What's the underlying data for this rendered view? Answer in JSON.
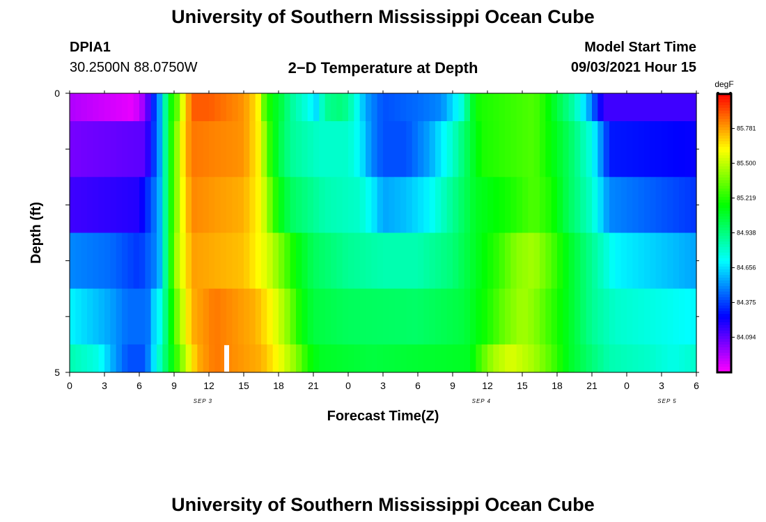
{
  "header": {
    "title": "University of Southern Mississippi Ocean Cube",
    "station": "DPIA1",
    "coords": "30.2500N  88.0750W",
    "plot_title": "2−D Temperature at Depth",
    "model_label": "Model Start Time",
    "model_time": "09/03/2021 Hour 15"
  },
  "footer": {
    "title": "University of Southern Mississippi Ocean Cube"
  },
  "chart_data": {
    "type": "heatmap",
    "title": "2−D Temperature at Depth",
    "xlabel": "Forecast Time(Z)",
    "ylabel": "Depth (ft)",
    "x_ticks": [
      "0",
      "3",
      "6",
      "9",
      "12",
      "15",
      "18",
      "21",
      "0",
      "3",
      "6",
      "9",
      "12",
      "15",
      "18",
      "21",
      "0",
      "3",
      "6"
    ],
    "x_range_hours": [
      0,
      54
    ],
    "day_labels": [
      {
        "label": "SEP 3",
        "hour": 11
      },
      {
        "label": "SEP 4",
        "hour": 35
      },
      {
        "label": "SEP 5",
        "hour": 51
      }
    ],
    "y_tick_labels": [
      "0",
      "5"
    ],
    "y_range": [
      0,
      5
    ],
    "depth_rows": 5,
    "colorbar": {
      "unit": "degF",
      "labels": [
        "85.781",
        "85.500",
        "85.219",
        "84.938",
        "84.656",
        "84.375",
        "84.094"
      ],
      "min": 83.81,
      "max": 86.06
    },
    "marker_hour": 13.5,
    "depth_bands": [
      {
        "depth": [
          0,
          0.5
        ],
        "temps": [
          [
            0,
            83.95
          ],
          [
            5.5,
            83.85
          ],
          [
            6.5,
            84.0
          ],
          [
            7.5,
            84.45
          ],
          [
            7.9,
            84.6
          ],
          [
            8.2,
            84.85
          ],
          [
            8.6,
            85.15
          ],
          [
            9.2,
            85.3
          ],
          [
            10,
            85.7
          ],
          [
            10.6,
            85.9
          ],
          [
            12,
            85.9
          ],
          [
            15,
            85.8
          ],
          [
            16.2,
            85.65
          ],
          [
            16.8,
            85.3
          ],
          [
            17.4,
            85.15
          ],
          [
            18.2,
            85.05
          ],
          [
            19,
            84.9
          ],
          [
            20.5,
            84.75
          ],
          [
            21.3,
            84.65
          ],
          [
            22,
            84.9
          ],
          [
            23.5,
            84.95
          ],
          [
            24.5,
            84.8
          ],
          [
            25.5,
            84.55
          ],
          [
            27,
            84.4
          ],
          [
            30,
            84.45
          ],
          [
            32,
            84.5
          ],
          [
            34,
            84.8
          ],
          [
            34.5,
            85.05
          ],
          [
            35.3,
            85.2
          ],
          [
            40,
            85.3
          ],
          [
            41,
            85.2
          ],
          [
            42,
            85.05
          ],
          [
            43.5,
            84.85
          ],
          [
            44.6,
            84.6
          ],
          [
            46,
            84.15
          ],
          [
            54,
            84.15
          ]
        ]
      },
      {
        "depth": [
          0.5,
          1.5
        ],
        "temps": [
          [
            0,
            84.05
          ],
          [
            6.5,
            84.1
          ],
          [
            7.5,
            84.45
          ],
          [
            7.9,
            84.6
          ],
          [
            8.2,
            84.85
          ],
          [
            8.6,
            85.15
          ],
          [
            9.2,
            85.4
          ],
          [
            10,
            85.75
          ],
          [
            10.6,
            85.85
          ],
          [
            15,
            85.8
          ],
          [
            16.5,
            85.6
          ],
          [
            17,
            85.3
          ],
          [
            18,
            85.05
          ],
          [
            19,
            84.9
          ],
          [
            21.5,
            84.8
          ],
          [
            24,
            84.8
          ],
          [
            25,
            84.7
          ],
          [
            26,
            84.5
          ],
          [
            27,
            84.4
          ],
          [
            29,
            84.4
          ],
          [
            31,
            84.55
          ],
          [
            33,
            84.8
          ],
          [
            34.5,
            85.05
          ],
          [
            35.5,
            85.2
          ],
          [
            40,
            85.3
          ],
          [
            41.5,
            85.15
          ],
          [
            43,
            85.0
          ],
          [
            45,
            84.75
          ],
          [
            46.5,
            84.3
          ],
          [
            54,
            84.25
          ]
        ]
      },
      {
        "depth": [
          1.5,
          2.5
        ],
        "temps": [
          [
            0,
            84.15
          ],
          [
            6,
            84.2
          ],
          [
            7.5,
            84.5
          ],
          [
            7.9,
            84.62
          ],
          [
            8.2,
            84.85
          ],
          [
            8.6,
            85.15
          ],
          [
            9.2,
            85.4
          ],
          [
            10,
            85.7
          ],
          [
            10.6,
            85.82
          ],
          [
            15,
            85.75
          ],
          [
            16.5,
            85.6
          ],
          [
            17.3,
            85.35
          ],
          [
            18,
            85.15
          ],
          [
            19,
            85.0
          ],
          [
            22,
            84.85
          ],
          [
            25,
            84.8
          ],
          [
            26,
            84.7
          ],
          [
            27,
            84.55
          ],
          [
            29,
            84.6
          ],
          [
            31,
            84.7
          ],
          [
            33,
            84.9
          ],
          [
            35,
            85.1
          ],
          [
            38,
            85.2
          ],
          [
            40,
            85.3
          ],
          [
            41.5,
            85.2
          ],
          [
            43,
            85.0
          ],
          [
            45,
            84.8
          ],
          [
            46.5,
            84.5
          ],
          [
            54,
            84.35
          ]
        ]
      },
      {
        "depth": [
          2.5,
          3.5
        ],
        "temps": [
          [
            0,
            84.5
          ],
          [
            3.5,
            84.45
          ],
          [
            6,
            84.35
          ],
          [
            7.5,
            84.5
          ],
          [
            7.9,
            84.62
          ],
          [
            8.2,
            84.85
          ],
          [
            8.6,
            85.15
          ],
          [
            9.2,
            85.45
          ],
          [
            10,
            85.65
          ],
          [
            10.6,
            85.78
          ],
          [
            15,
            85.72
          ],
          [
            17,
            85.55
          ],
          [
            18.3,
            85.35
          ],
          [
            19.5,
            85.15
          ],
          [
            21,
            85.0
          ],
          [
            24,
            84.9
          ],
          [
            27,
            84.85
          ],
          [
            30,
            84.85
          ],
          [
            33,
            84.95
          ],
          [
            35,
            85.1
          ],
          [
            37,
            85.25
          ],
          [
            38.5,
            85.4
          ],
          [
            40,
            85.45
          ],
          [
            41.5,
            85.3
          ],
          [
            43,
            85.1
          ],
          [
            45,
            84.9
          ],
          [
            47,
            84.7
          ],
          [
            54,
            84.55
          ]
        ]
      },
      {
        "depth": [
          3.5,
          4.5
        ],
        "temps": [
          [
            0,
            84.7
          ],
          [
            3.5,
            84.55
          ],
          [
            5,
            84.45
          ],
          [
            6.7,
            84.45
          ],
          [
            7.3,
            84.65
          ],
          [
            7.9,
            84.75
          ],
          [
            8.2,
            84.9
          ],
          [
            8.6,
            85.1
          ],
          [
            9.2,
            85.35
          ],
          [
            10,
            85.6
          ],
          [
            10.6,
            85.75
          ],
          [
            12.5,
            85.85
          ],
          [
            16,
            85.75
          ],
          [
            17.5,
            85.6
          ],
          [
            18.8,
            85.4
          ],
          [
            20,
            85.15
          ],
          [
            21,
            85.05
          ],
          [
            24,
            85.0
          ],
          [
            30,
            84.98
          ],
          [
            34,
            85.05
          ],
          [
            36,
            85.2
          ],
          [
            37.5,
            85.35
          ],
          [
            39,
            85.45
          ],
          [
            40,
            85.4
          ],
          [
            42,
            85.2
          ],
          [
            43.5,
            85.05
          ],
          [
            45,
            84.9
          ],
          [
            47,
            84.8
          ],
          [
            54,
            84.7
          ]
        ]
      },
      {
        "depth": [
          4.5,
          5.0
        ],
        "temps": [
          [
            0,
            84.85
          ],
          [
            2.5,
            84.75
          ],
          [
            3.8,
            84.55
          ],
          [
            5,
            84.4
          ],
          [
            6.5,
            84.4
          ],
          [
            7.2,
            84.65
          ],
          [
            7.9,
            84.85
          ],
          [
            8.5,
            85.05
          ],
          [
            9.2,
            85.25
          ],
          [
            10,
            85.5
          ],
          [
            11,
            85.75
          ],
          [
            12.5,
            85.85
          ],
          [
            16.5,
            85.75
          ],
          [
            18,
            85.6
          ],
          [
            19.5,
            85.4
          ],
          [
            20.5,
            85.2
          ],
          [
            21.5,
            85.1
          ],
          [
            26,
            85.05
          ],
          [
            34.5,
            85.1
          ],
          [
            35.5,
            85.3
          ],
          [
            36.5,
            85.45
          ],
          [
            38,
            85.55
          ],
          [
            40,
            85.45
          ],
          [
            41.5,
            85.3
          ],
          [
            43,
            85.1
          ],
          [
            45,
            84.95
          ],
          [
            46.5,
            84.85
          ],
          [
            50,
            84.8
          ],
          [
            52,
            84.75
          ],
          [
            54,
            84.8
          ]
        ]
      }
    ]
  }
}
